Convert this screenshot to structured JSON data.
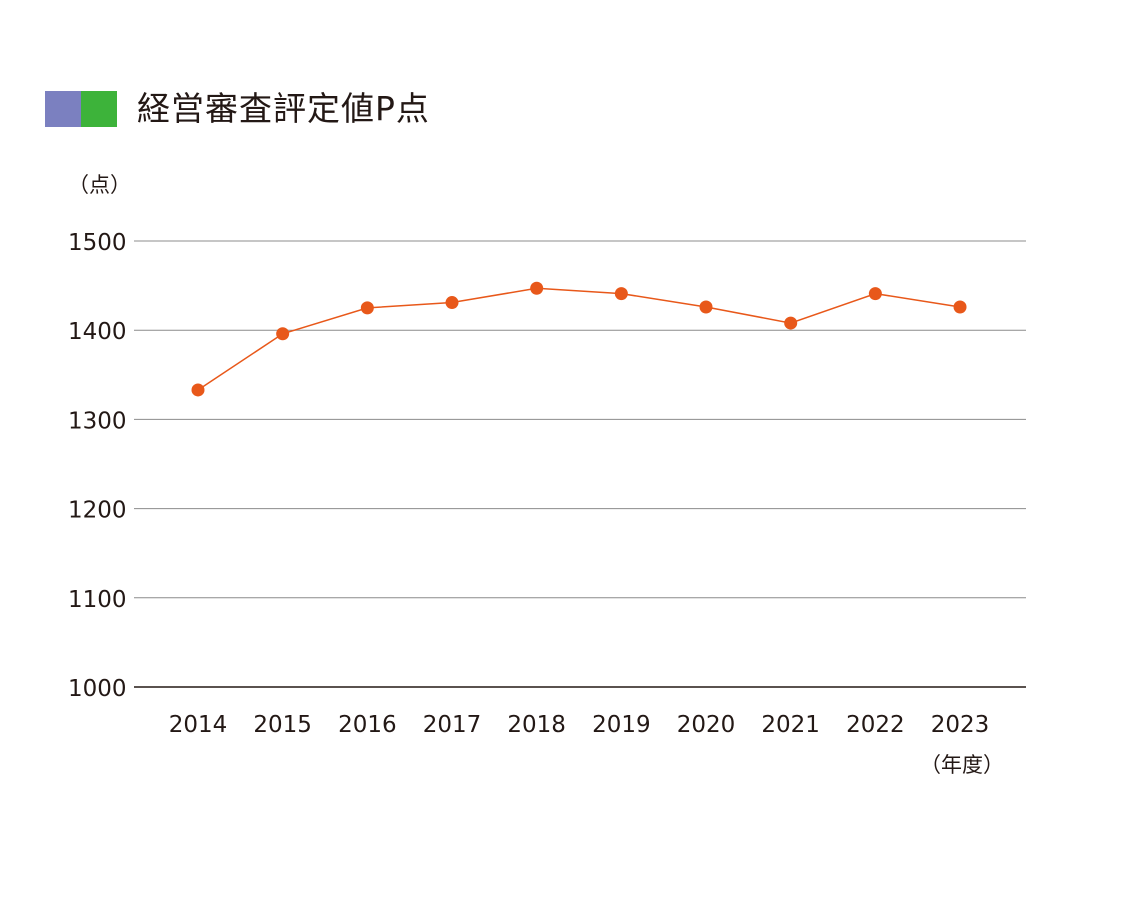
{
  "header": {
    "title": "経営審査評定値P点"
  },
  "colors": {
    "swatch_left": "#7b80c0",
    "swatch_right": "#3db33a",
    "line": "#e8581a",
    "grid": "#8c8c8c",
    "axis": "#231815"
  },
  "chart_data": {
    "type": "line",
    "title": "経営審査評定値P点",
    "ylabel": "（点）",
    "xlabel": "（年度）",
    "ylim": [
      1000,
      1500
    ],
    "yticks": [
      1000,
      1100,
      1200,
      1300,
      1400,
      1500
    ],
    "grid": true,
    "categories": [
      "2014",
      "2015",
      "2016",
      "2017",
      "2018",
      "2019",
      "2020",
      "2021",
      "2022",
      "2023"
    ],
    "series": [
      {
        "values": [
          1333,
          1396,
          1425,
          1431,
          1447,
          1441,
          1426,
          1408,
          1441,
          1426
        ]
      }
    ]
  }
}
